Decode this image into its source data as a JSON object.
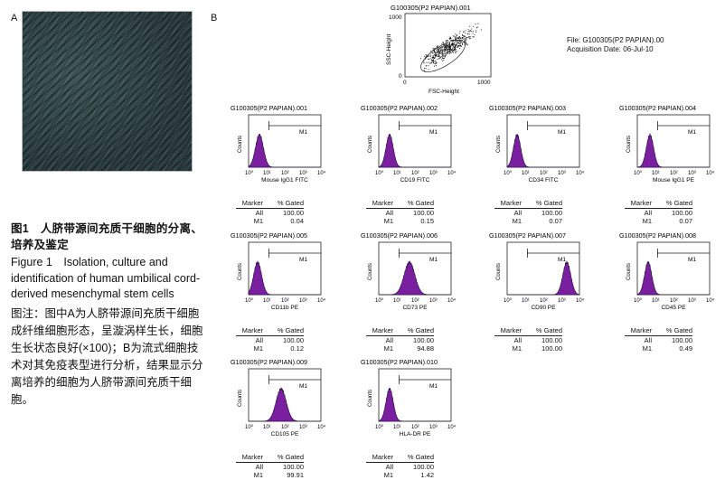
{
  "panel_labels": {
    "a": "A",
    "b": "B"
  },
  "caption": {
    "title_zh": "图1　人脐带源间充质干细胞的分离、培养及鉴定",
    "title_en": "Figure 1　Isolation, culture and identification of human umbilical cord-derived mesenchymal stem cells",
    "note_zh": "图注：图中A为人脐带源间充质干细胞成纤维细胞形态，呈漩涡样生长，细胞生长状态良好(×100)；B为流式细胞技术对其免疫表型进行分析，结果显示分离培养的细胞为人脐带源间充质干细胞。"
  },
  "scatter": {
    "title": "G100305(P2 PAPIAN).001",
    "xlabel": "FSC-Height",
    "ylabel": "SSC-Height",
    "xticks": [
      "0",
      "1000"
    ],
    "yticks": [
      "0",
      "1000"
    ]
  },
  "file_info": {
    "file": "File: G100305(P2 PAPIAN).00",
    "date": "Acquisition Date: 06-Jul-10"
  },
  "stat_headers": {
    "marker": "Marker",
    "gated": "% Gated"
  },
  "histogram_common": {
    "ylabel": "Counts",
    "gate": "M1",
    "xticks": [
      "10⁰",
      "10¹",
      "10²",
      "10³",
      "10⁴"
    ]
  },
  "chart_data": [
    {
      "type": "area",
      "title": "G100305(P2 PAPIAN).001",
      "xlabel": "Mouse IgG1 FITC",
      "peak_log": 0.6,
      "width": 0.22,
      "stats": [
        {
          "marker": "All",
          "gated": "100.00"
        },
        {
          "marker": "M1",
          "gated": "0.04"
        }
      ]
    },
    {
      "type": "area",
      "title": "G100305(P2 PAPIAN).002",
      "xlabel": "CD19 FITC",
      "peak_log": 0.6,
      "width": 0.2,
      "stats": [
        {
          "marker": "All",
          "gated": "100.00"
        },
        {
          "marker": "M1",
          "gated": "0.15"
        }
      ]
    },
    {
      "type": "area",
      "title": "G100305(P2 PAPIAN).003",
      "xlabel": "CD34 FITC",
      "peak_log": 0.55,
      "width": 0.2,
      "stats": [
        {
          "marker": "All",
          "gated": "100.00"
        },
        {
          "marker": "M1",
          "gated": "0.07"
        }
      ]
    },
    {
      "type": "area",
      "title": "G100305(P2 PAPIAN).004",
      "xlabel": "Mouse IgG1 PE",
      "peak_log": 0.7,
      "width": 0.2,
      "stats": [
        {
          "marker": "All",
          "gated": "100.00"
        },
        {
          "marker": "M1",
          "gated": "0.07"
        }
      ]
    },
    {
      "type": "area",
      "title": "G100305(P2 PAPIAN).005",
      "xlabel": "CD11b PE",
      "peak_log": 0.5,
      "width": 0.22,
      "stats": [
        {
          "marker": "All",
          "gated": "100.00"
        },
        {
          "marker": "M1",
          "gated": "0.12"
        }
      ]
    },
    {
      "type": "area",
      "title": "G100305(P2 PAPIAN).006",
      "xlabel": "CD73 PE",
      "peak_log": 1.7,
      "width": 0.3,
      "stats": [
        {
          "marker": "All",
          "gated": "100.00"
        },
        {
          "marker": "M1",
          "gated": "94.88"
        }
      ]
    },
    {
      "type": "area",
      "title": "G100305(P2 PAPIAN).007",
      "xlabel": "CD90 PE",
      "peak_log": 3.3,
      "width": 0.22,
      "stats": [
        {
          "marker": "All",
          "gated": "100.00"
        },
        {
          "marker": "M1",
          "gated": "100.00"
        }
      ]
    },
    {
      "type": "area",
      "title": "G100305(P2 PAPIAN).008",
      "xlabel": "CD45 PE",
      "peak_log": 0.6,
      "width": 0.2,
      "stats": [
        {
          "marker": "All",
          "gated": "100.00"
        },
        {
          "marker": "M1",
          "gated": "0.49"
        }
      ]
    },
    {
      "type": "area",
      "title": "G100305(P2 PAPIAN).009",
      "xlabel": "CD105 PE",
      "peak_log": 1.8,
      "width": 0.28,
      "stats": [
        {
          "marker": "All",
          "gated": "100.00"
        },
        {
          "marker": "M1",
          "gated": "99.91"
        }
      ]
    },
    {
      "type": "area",
      "title": "G100305(P2 PAPIAN).010",
      "xlabel": "HLA-DR PE",
      "peak_log": 0.6,
      "width": 0.2,
      "stats": [
        {
          "marker": "All",
          "gated": "100.00"
        },
        {
          "marker": "M1",
          "gated": "1.42"
        }
      ]
    }
  ],
  "colors": {
    "histogram_fill": "#7a1fa0",
    "histogram_stroke": "#1a0a30"
  }
}
